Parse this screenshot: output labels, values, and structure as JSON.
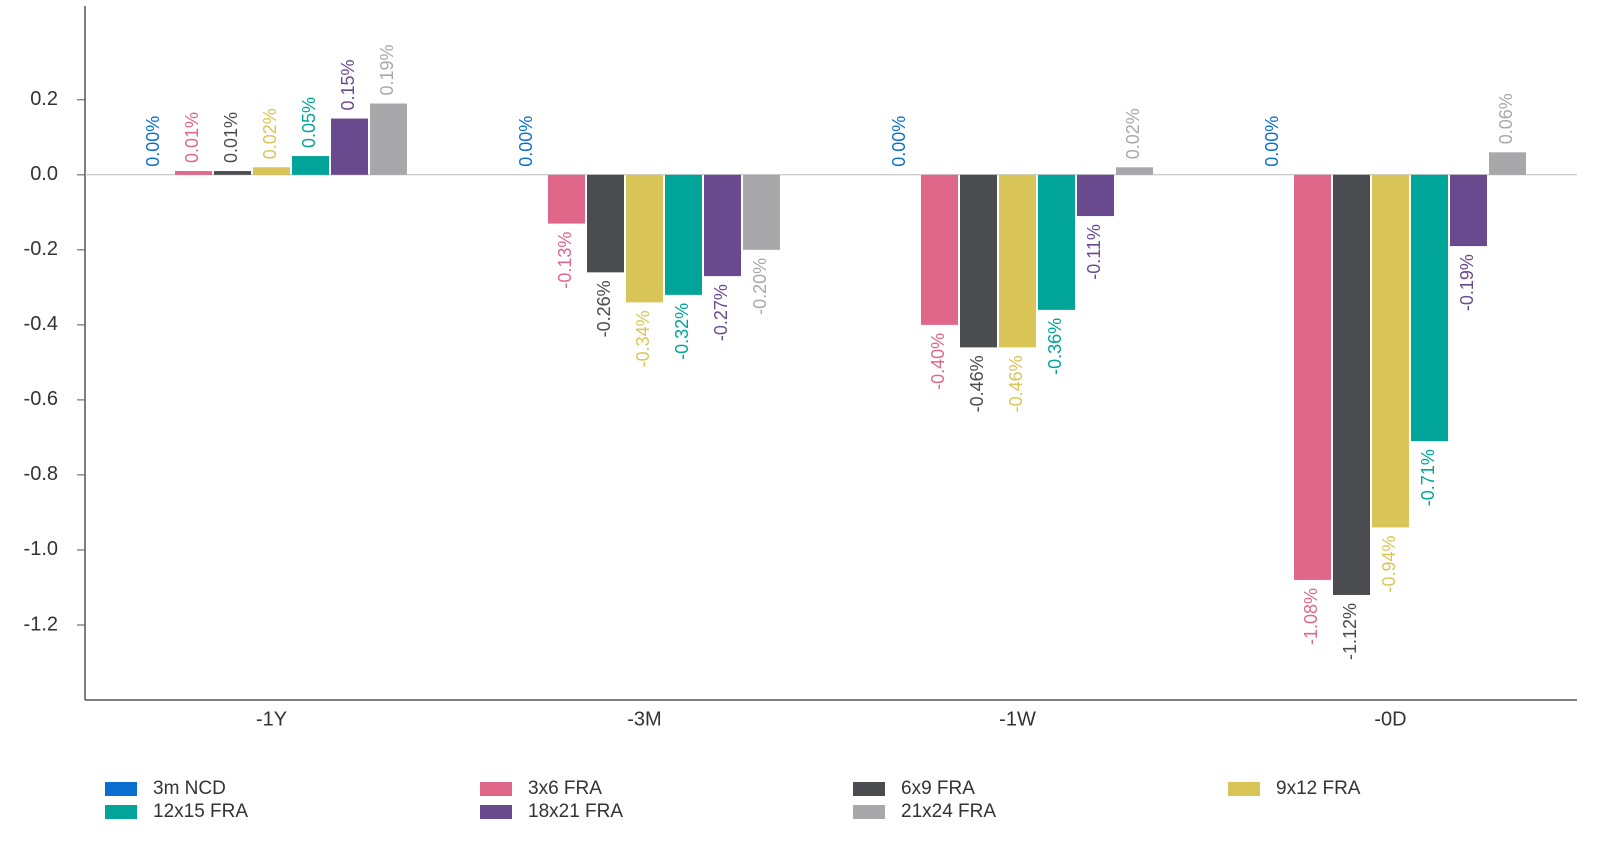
{
  "chart_data": {
    "type": "bar",
    "categories": [
      "-1Y",
      "-3M",
      "-1W",
      "-0D"
    ],
    "ylim": [
      -1.4,
      0.45
    ],
    "yticks": [
      0.2,
      {
        "value": 0,
        "label": "0.0"
      },
      -0.2,
      -0.4,
      -0.6,
      -0.8,
      {
        "value": -1,
        "label": "-1.0"
      },
      -1.2
    ],
    "grid": false,
    "series": [
      {
        "name": "3m NCD",
        "color": "#0a6fd0",
        "values": [
          0,
          0,
          0,
          0
        ],
        "value_labels": [
          "0.00%",
          "0.00%",
          "0.00%",
          "0.00%"
        ]
      },
      {
        "name": "3x6 FRA",
        "color": "#e0668a",
        "values": [
          0.01,
          -0.13,
          -0.4,
          -1.08
        ],
        "value_labels": [
          "0.01%",
          "-0.13%",
          "-0.40%",
          "-1.08%"
        ]
      },
      {
        "name": "6x9 FRA",
        "color": "#4a4c50",
        "values": [
          0.01,
          -0.26,
          -0.46,
          -1.12
        ],
        "value_labels": [
          "0.01%",
          "-0.26%",
          "-0.46%",
          "-1.12%"
        ]
      },
      {
        "name": "9x12 FRA",
        "color": "#d9c557",
        "values": [
          0.02,
          -0.34,
          -0.46,
          -0.94
        ],
        "value_labels": [
          "0.02%",
          "-0.34%",
          "-0.46%",
          "-0.94%"
        ]
      },
      {
        "name": "12x15 FRA",
        "color": "#00a499",
        "values": [
          0.05,
          -0.32,
          -0.36,
          -0.71
        ],
        "value_labels": [
          "0.05%",
          "-0.32%",
          "-0.36%",
          "-0.71%"
        ]
      },
      {
        "name": "18x21 FRA",
        "color": "#6a4a8e",
        "values": [
          0.15,
          -0.27,
          -0.11,
          -0.19
        ],
        "value_labels": [
          "0.15%",
          "-0.27%",
          "-0.11%",
          "-0.19%"
        ]
      },
      {
        "name": "21x24 FRA",
        "color": "#a8a8aa",
        "values": [
          0.19,
          -0.2,
          0.02,
          0.06
        ],
        "value_labels": [
          "0.19%",
          "-0.20%",
          "0.02%",
          "0.06%"
        ]
      }
    ]
  }
}
